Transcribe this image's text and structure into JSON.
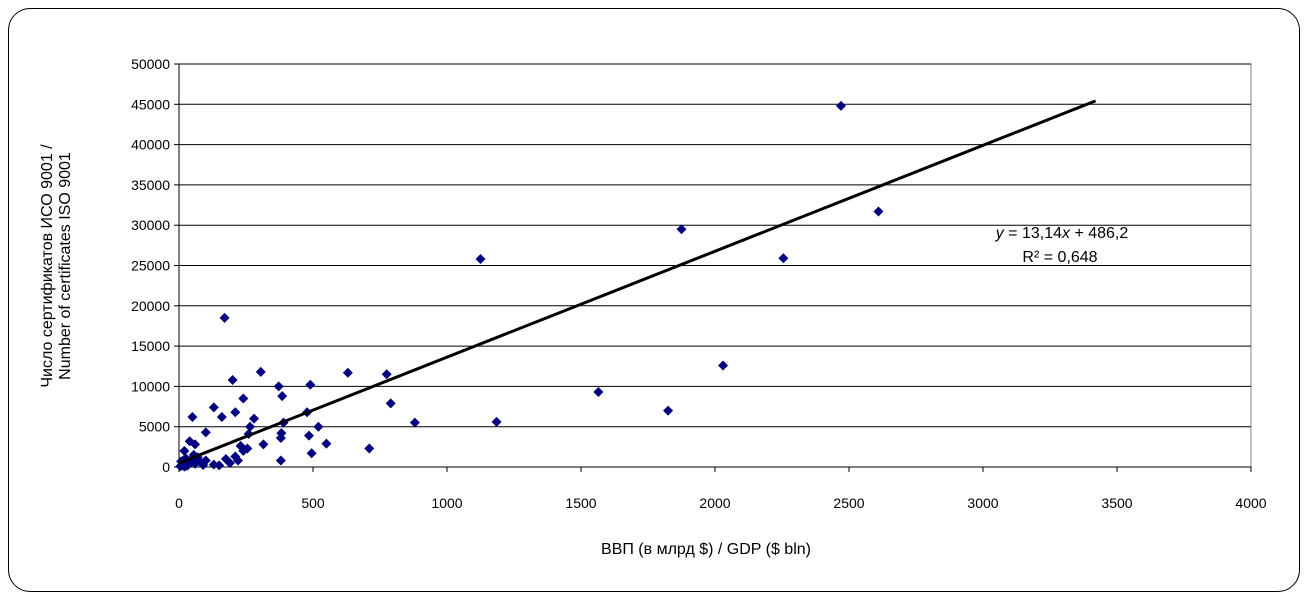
{
  "chart_data": {
    "type": "scatter",
    "title": "",
    "xlabel": "ВВП (в млрд $) / GDP ($ bln)",
    "ylabel_lines": [
      "Число сертификатов ИСО 9001 /",
      "Number of certificates ISO 9001"
    ],
    "xlim": [
      0,
      4000
    ],
    "ylim": [
      0,
      50000
    ],
    "x_ticks": [
      0,
      500,
      1000,
      1500,
      2000,
      2500,
      3000,
      3500,
      4000
    ],
    "y_ticks": [
      0,
      5000,
      10000,
      15000,
      20000,
      25000,
      30000,
      35000,
      40000,
      45000,
      50000
    ],
    "grid": "horizontal",
    "marker_color": "#000080",
    "trendline": {
      "slope": 13.14,
      "intercept": 486.2,
      "x_start": 0,
      "x_end": 3420,
      "color": "#000000"
    },
    "equation_text": {
      "prefix": "",
      "var_y": "y",
      "middle": " = 13,14",
      "var_x": "x",
      "suffix": " + 486,2"
    },
    "r2_text": "R² = 0,648",
    "points": [
      {
        "x": 2470,
        "y": 44800
      },
      {
        "x": 2610,
        "y": 31700
      },
      {
        "x": 1875,
        "y": 29500
      },
      {
        "x": 1125,
        "y": 25800
      },
      {
        "x": 2255,
        "y": 25900
      },
      {
        "x": 2030,
        "y": 12600
      },
      {
        "x": 1565,
        "y": 9300
      },
      {
        "x": 1825,
        "y": 7000
      },
      {
        "x": 1185,
        "y": 5600
      },
      {
        "x": 880,
        "y": 5500
      },
      {
        "x": 790,
        "y": 7900
      },
      {
        "x": 775,
        "y": 11500
      },
      {
        "x": 630,
        "y": 11700
      },
      {
        "x": 710,
        "y": 2300
      },
      {
        "x": 550,
        "y": 2900
      },
      {
        "x": 520,
        "y": 5000
      },
      {
        "x": 495,
        "y": 1700
      },
      {
        "x": 490,
        "y": 10200
      },
      {
        "x": 485,
        "y": 3900
      },
      {
        "x": 478,
        "y": 6800
      },
      {
        "x": 385,
        "y": 8800
      },
      {
        "x": 372,
        "y": 10000
      },
      {
        "x": 390,
        "y": 5500
      },
      {
        "x": 380,
        "y": 3600
      },
      {
        "x": 382,
        "y": 4200
      },
      {
        "x": 380,
        "y": 800
      },
      {
        "x": 305,
        "y": 11800
      },
      {
        "x": 315,
        "y": 2800
      },
      {
        "x": 280,
        "y": 6000
      },
      {
        "x": 265,
        "y": 5000
      },
      {
        "x": 255,
        "y": 2300
      },
      {
        "x": 240,
        "y": 8500
      },
      {
        "x": 240,
        "y": 2000
      },
      {
        "x": 210,
        "y": 6800
      },
      {
        "x": 200,
        "y": 10800
      },
      {
        "x": 170,
        "y": 18500
      },
      {
        "x": 160,
        "y": 6200
      },
      {
        "x": 130,
        "y": 7400
      },
      {
        "x": 100,
        "y": 4300
      },
      {
        "x": 50,
        "y": 6200
      },
      {
        "x": 40,
        "y": 3200
      },
      {
        "x": 60,
        "y": 2800
      },
      {
        "x": 20,
        "y": 2000
      },
      {
        "x": 210,
        "y": 1300
      },
      {
        "x": 190,
        "y": 500
      },
      {
        "x": 175,
        "y": 1000
      },
      {
        "x": 130,
        "y": 300
      },
      {
        "x": 100,
        "y": 800
      },
      {
        "x": 80,
        "y": 600
      },
      {
        "x": 70,
        "y": 1200
      },
      {
        "x": 60,
        "y": 400
      },
      {
        "x": 45,
        "y": 900
      },
      {
        "x": 35,
        "y": 300
      },
      {
        "x": 25,
        "y": 1100
      },
      {
        "x": 15,
        "y": 500
      },
      {
        "x": 10,
        "y": 200
      },
      {
        "x": 5,
        "y": 100
      },
      {
        "x": 8,
        "y": 700
      },
      {
        "x": 30,
        "y": 150
      },
      {
        "x": 55,
        "y": 1500
      },
      {
        "x": 220,
        "y": 800
      },
      {
        "x": 230,
        "y": 2600
      },
      {
        "x": 260,
        "y": 4100
      },
      {
        "x": 150,
        "y": 200
      },
      {
        "x": 90,
        "y": 250
      },
      {
        "x": 20,
        "y": 50
      }
    ]
  }
}
